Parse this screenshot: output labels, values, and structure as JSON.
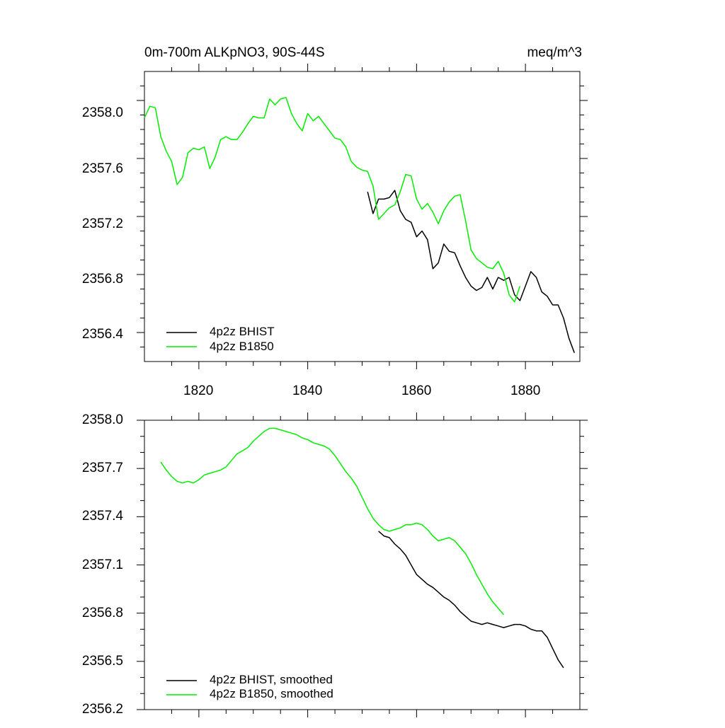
{
  "figure": {
    "title_left": "0m-700m ALKpNO3, 90S-44S",
    "title_right": "meq/m^3"
  },
  "chart_data": [
    {
      "type": "line",
      "title": "0m-700m ALKpNO3, 90S-44S",
      "units": "meq/m^3",
      "xlabel": "",
      "ylabel": "",
      "xlim": [
        1810,
        1890
      ],
      "ylim": [
        2356.2,
        2358.2
      ],
      "x_ticks": [
        1820,
        1840,
        1860,
        1880
      ],
      "x_tick_labels": [
        "1820",
        "1840",
        "1860",
        "1880"
      ],
      "y_ticks": [
        2356.4,
        2356.8,
        2357.2,
        2357.6,
        2358.0
      ],
      "y_tick_labels": [
        "2356.4",
        "2356.8",
        "2357.2",
        "2357.6",
        "2358.0"
      ],
      "legend_position": "bottom-left",
      "series": [
        {
          "name": "4p2z BHIST",
          "color": "#000000",
          "x": [
            1851,
            1852,
            1853,
            1854,
            1855,
            1856,
            1857,
            1858,
            1859,
            1860,
            1861,
            1862,
            1863,
            1864,
            1865,
            1866,
            1867,
            1868,
            1869,
            1870,
            1871,
            1872,
            1873,
            1874,
            1875,
            1876,
            1877,
            1878,
            1879,
            1880,
            1881,
            1882,
            1883,
            1884,
            1885,
            1886,
            1887,
            1888,
            1889
          ],
          "y": [
            2357.37,
            2357.22,
            2357.32,
            2357.32,
            2357.33,
            2357.38,
            2357.24,
            2357.18,
            2357.16,
            2357.06,
            2357.1,
            2357.04,
            2356.84,
            2356.88,
            2357.01,
            2356.96,
            2356.95,
            2356.86,
            2356.78,
            2356.72,
            2356.69,
            2356.71,
            2356.78,
            2356.7,
            2356.78,
            2356.76,
            2356.78,
            2356.66,
            2356.62,
            2356.72,
            2356.82,
            2356.78,
            2356.68,
            2356.65,
            2356.59,
            2356.59,
            2356.5,
            2356.36,
            2356.26
          ]
        },
        {
          "name": "4p2z B1850",
          "color": "#00ee00",
          "x": [
            1810,
            1811,
            1812,
            1813,
            1814,
            1815,
            1816,
            1817,
            1818,
            1819,
            1820,
            1821,
            1822,
            1823,
            1824,
            1825,
            1826,
            1827,
            1828,
            1829,
            1830,
            1831,
            1832,
            1833,
            1834,
            1835,
            1836,
            1837,
            1838,
            1839,
            1840,
            1841,
            1842,
            1843,
            1844,
            1845,
            1846,
            1847,
            1848,
            1849,
            1850,
            1851,
            1852,
            1853,
            1854,
            1855,
            1856,
            1857,
            1858,
            1859,
            1860,
            1861,
            1862,
            1863,
            1864,
            1865,
            1866,
            1867,
            1868,
            1869,
            1870,
            1871,
            1872,
            1873,
            1874,
            1875,
            1876,
            1877,
            1878,
            1879
          ],
          "y": [
            2357.88,
            2357.96,
            2357.95,
            2357.75,
            2357.65,
            2357.58,
            2357.42,
            2357.47,
            2357.64,
            2357.67,
            2357.66,
            2357.68,
            2357.53,
            2357.61,
            2357.73,
            2357.75,
            2357.73,
            2357.73,
            2357.78,
            2357.84,
            2357.89,
            2357.88,
            2357.88,
            2358.01,
            2357.97,
            2358.01,
            2358.02,
            2357.91,
            2357.84,
            2357.79,
            2357.91,
            2357.86,
            2357.89,
            2357.84,
            2357.79,
            2357.74,
            2357.73,
            2357.68,
            2357.58,
            2357.54,
            2357.52,
            2357.51,
            2357.41,
            2357.18,
            2357.22,
            2357.26,
            2357.28,
            2357.37,
            2357.49,
            2357.48,
            2357.32,
            2357.25,
            2357.29,
            2357.23,
            2357.15,
            2357.24,
            2357.3,
            2357.34,
            2357.35,
            2357.17,
            2356.97,
            2356.91,
            2356.88,
            2356.85,
            2356.84,
            2356.89,
            2356.81,
            2356.66,
            2356.61,
            2356.72
          ]
        }
      ]
    },
    {
      "type": "line",
      "title": "",
      "xlabel": "",
      "ylabel": "",
      "xlim": [
        1810,
        1890
      ],
      "ylim": [
        2356.2,
        2358.0
      ],
      "x_ticks": [
        1820,
        1840,
        1860,
        1880
      ],
      "y_ticks": [
        2356.2,
        2356.5,
        2356.8,
        2357.1,
        2357.4,
        2357.7,
        2358.0
      ],
      "y_tick_labels": [
        "2356.2",
        "2356.5",
        "2356.8",
        "2357.1",
        "2357.4",
        "2357.7",
        "2358.0"
      ],
      "legend_position": "bottom-left",
      "series": [
        {
          "name": "4p2z BHIST, smoothed",
          "color": "#000000",
          "x": [
            1853,
            1854,
            1855,
            1856,
            1857,
            1858,
            1859,
            1860,
            1861,
            1862,
            1863,
            1864,
            1865,
            1866,
            1867,
            1868,
            1869,
            1870,
            1871,
            1872,
            1873,
            1874,
            1875,
            1876,
            1877,
            1878,
            1879,
            1880,
            1881,
            1882,
            1883,
            1884,
            1885,
            1886,
            1887
          ],
          "y": [
            2357.31,
            2357.28,
            2357.27,
            2357.23,
            2357.2,
            2357.16,
            2357.1,
            2357.04,
            2357.01,
            2356.98,
            2356.96,
            2356.93,
            2356.9,
            2356.88,
            2356.85,
            2356.81,
            2356.78,
            2356.75,
            2356.74,
            2356.73,
            2356.74,
            2356.73,
            2356.72,
            2356.71,
            2356.72,
            2356.73,
            2356.73,
            2356.72,
            2356.7,
            2356.69,
            2356.69,
            2356.65,
            2356.58,
            2356.51,
            2356.46
          ]
        },
        {
          "name": "4p2z B1850, smoothed",
          "color": "#00ee00",
          "x": [
            1813,
            1814,
            1815,
            1816,
            1817,
            1818,
            1819,
            1820,
            1821,
            1822,
            1823,
            1824,
            1825,
            1826,
            1827,
            1828,
            1829,
            1830,
            1831,
            1832,
            1833,
            1834,
            1835,
            1836,
            1837,
            1838,
            1839,
            1840,
            1841,
            1842,
            1843,
            1844,
            1845,
            1846,
            1847,
            1848,
            1849,
            1850,
            1851,
            1852,
            1853,
            1854,
            1855,
            1856,
            1857,
            1858,
            1859,
            1860,
            1861,
            1862,
            1863,
            1864,
            1865,
            1866,
            1867,
            1868,
            1869,
            1870,
            1871,
            1872,
            1873,
            1874,
            1875,
            1876
          ],
          "y": [
            2357.74,
            2357.69,
            2357.65,
            2357.62,
            2357.61,
            2357.62,
            2357.61,
            2357.63,
            2357.66,
            2357.67,
            2357.68,
            2357.69,
            2357.71,
            2357.75,
            2357.79,
            2357.81,
            2357.83,
            2357.87,
            2357.9,
            2357.93,
            2357.95,
            2357.95,
            2357.94,
            2357.93,
            2357.92,
            2357.91,
            2357.89,
            2357.88,
            2357.86,
            2357.85,
            2357.84,
            2357.82,
            2357.78,
            2357.73,
            2357.68,
            2357.64,
            2357.59,
            2357.52,
            2357.45,
            2357.39,
            2357.35,
            2357.32,
            2357.31,
            2357.32,
            2357.33,
            2357.35,
            2357.35,
            2357.36,
            2357.35,
            2357.32,
            2357.28,
            2357.25,
            2357.26,
            2357.27,
            2357.25,
            2357.21,
            2357.17,
            2357.11,
            2357.04,
            2356.98,
            2356.92,
            2356.87,
            2356.83,
            2356.79
          ]
        }
      ]
    }
  ]
}
